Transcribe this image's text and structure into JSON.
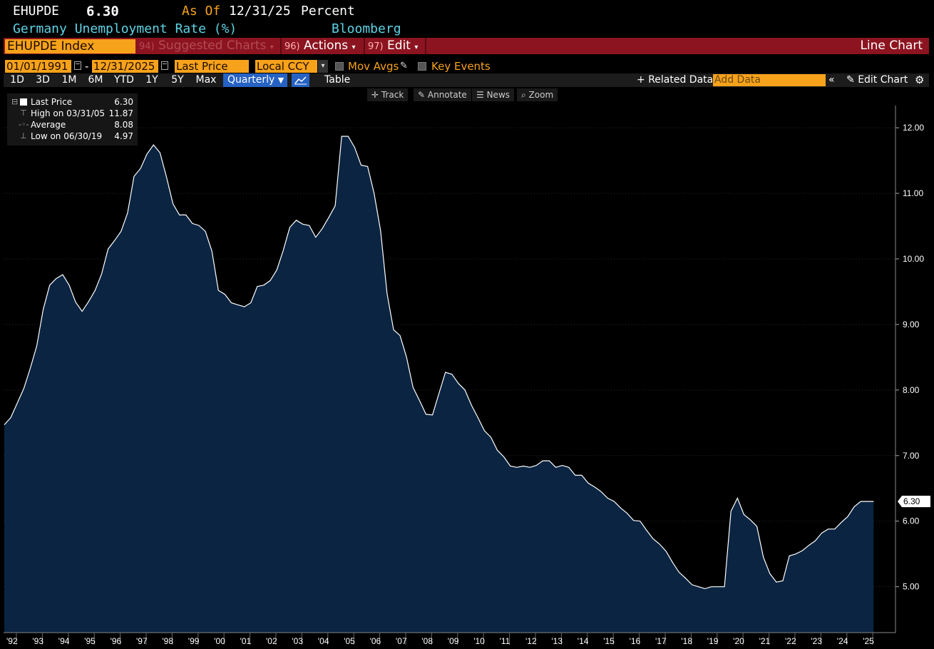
{
  "header": {
    "ticker": "EHUPDE",
    "last_value": "6.30",
    "as_of_label": "As Of",
    "as_of_date": "12/31/25",
    "unit": "Percent",
    "description": "Germany Unemployment Rate (%)",
    "source": "Bloomberg"
  },
  "command_bar": {
    "security": "EHUPDE Index",
    "suggested_num": "94)",
    "suggested_label": "Suggested Charts",
    "actions_num": "96)",
    "actions_label": "Actions",
    "edit_num": "97)",
    "edit_label": "Edit",
    "chart_type": "Line Chart"
  },
  "controls": {
    "start_date": "01/01/1991",
    "date_sep": "-",
    "end_date": "12/31/2025",
    "field": "Last Price",
    "currency": "Local CCY",
    "mov_avgs": "Mov Avgs",
    "key_events": "Key Events",
    "periods": [
      "1D",
      "3D",
      "1M",
      "6M",
      "YTD",
      "1Y",
      "5Y",
      "Max"
    ],
    "frequency": "Quarterly",
    "table": "Table",
    "related_data": "Related Data",
    "add_data_placeholder": "Add Data",
    "edit_chart": "Edit Chart"
  },
  "chart_tools": {
    "track": "Track",
    "annotate": "Annotate",
    "news": "News",
    "zoom": "Zoom"
  },
  "legend": {
    "last_price_label": "Last Price",
    "last_price_value": "6.30",
    "high_label": "High on 03/31/05",
    "high_value": "11.87",
    "average_label": "Average",
    "average_value": "8.08",
    "low_label": "Low on 06/30/19",
    "low_value": "4.97"
  },
  "colors": {
    "area_fill": "#0b2442",
    "line": "#ffffff",
    "orange": "#f7a21b",
    "command_red": "#8c1420",
    "cyan_text": "#5fd3e6",
    "highlight_blue": "#2662c4"
  },
  "chart_data": {
    "type": "area",
    "title": "Germany Unemployment Rate (%)",
    "frequency": "quarterly",
    "x_start": "1991-12-31",
    "ylim": [
      4.3,
      12.6
    ],
    "yticks": [
      "5.00",
      "6.00",
      "7.00",
      "8.00",
      "9.00",
      "10.00",
      "11.00",
      "12.00"
    ],
    "xtick_labels": [
      "'92",
      "'93",
      "'94",
      "'95",
      "'96",
      "'97",
      "'98",
      "'99",
      "'00",
      "'01",
      "'02",
      "'03",
      "'04",
      "'05",
      "'06",
      "'07",
      "'08",
      "'09",
      "'10",
      "'11",
      "'12",
      "'13",
      "'14",
      "'15",
      "'16",
      "'17",
      "'18",
      "'19",
      "'20",
      "'21",
      "'22",
      "'23",
      "'24",
      "'25"
    ],
    "last_value_label": "6.30",
    "series": [
      {
        "name": "Last Price",
        "values": [
          7.47,
          7.58,
          7.8,
          8.02,
          8.33,
          8.67,
          9.23,
          9.6,
          9.7,
          9.76,
          9.6,
          9.34,
          9.2,
          9.35,
          9.52,
          9.77,
          10.15,
          10.28,
          10.42,
          10.7,
          11.26,
          11.38,
          11.6,
          11.74,
          11.62,
          11.25,
          10.84,
          10.67,
          10.67,
          10.54,
          10.51,
          10.42,
          10.12,
          9.52,
          9.46,
          9.33,
          9.3,
          9.27,
          9.33,
          9.58,
          9.6,
          9.67,
          9.83,
          10.13,
          10.48,
          10.59,
          10.53,
          10.51,
          10.33,
          10.46,
          10.63,
          10.81,
          11.87,
          11.87,
          11.7,
          11.43,
          11.41,
          11.0,
          10.43,
          9.47,
          8.92,
          8.83,
          8.5,
          8.04,
          7.84,
          7.63,
          7.62,
          7.95,
          8.27,
          8.24,
          8.1,
          8.0,
          7.77,
          7.58,
          7.38,
          7.28,
          7.08,
          6.98,
          6.84,
          6.82,
          6.84,
          6.82,
          6.85,
          6.92,
          6.92,
          6.82,
          6.85,
          6.82,
          6.7,
          6.7,
          6.58,
          6.52,
          6.45,
          6.35,
          6.3,
          6.2,
          6.12,
          6.01,
          6.0,
          5.86,
          5.73,
          5.65,
          5.54,
          5.37,
          5.22,
          5.13,
          5.03,
          5.0,
          4.97,
          5.0,
          5.0,
          5.0,
          6.15,
          6.35,
          6.1,
          6.02,
          5.92,
          5.45,
          5.2,
          5.07,
          5.09,
          5.47,
          5.5,
          5.55,
          5.63,
          5.7,
          5.82,
          5.88,
          5.88,
          5.98,
          6.07,
          6.22,
          6.3,
          6.3,
          6.3
        ]
      }
    ]
  }
}
